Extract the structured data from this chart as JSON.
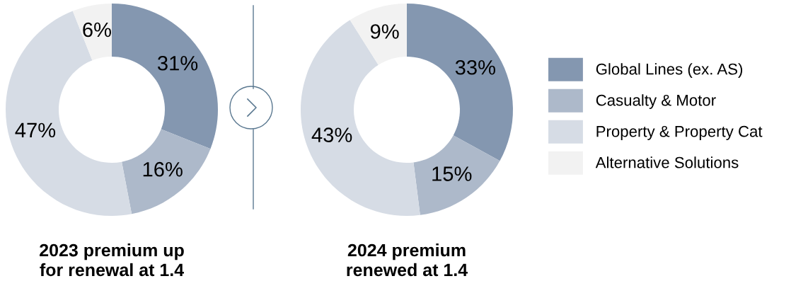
{
  "chart_data": [
    {
      "type": "donut",
      "title": "2023 premium up\nfor renewal at 1.4",
      "categories": [
        "Global Lines (ex. AS)",
        "Casualty & Motor",
        "Property & Property Cat",
        "Alternative Solutions"
      ],
      "values": [
        31,
        16,
        47,
        6
      ],
      "value_labels": [
        "31%",
        "16%",
        "47%",
        "6%"
      ],
      "colors": [
        "#8497b0",
        "#adb9ca",
        "#d6dce5",
        "#f2f2f2"
      ],
      "legend": "right"
    },
    {
      "type": "donut",
      "title": "2024 premium\nrenewed at 1.4",
      "categories": [
        null,
        null,
        null,
        null
      ],
      "values": [
        33,
        15,
        43,
        9
      ],
      "value_labels": [
        "33%",
        "15%",
        "43%",
        "9%"
      ],
      "colors": [
        "#8497b0",
        "#adb9ca",
        "#d6dce5",
        "#f2f2f2"
      ]
    }
  ]
}
